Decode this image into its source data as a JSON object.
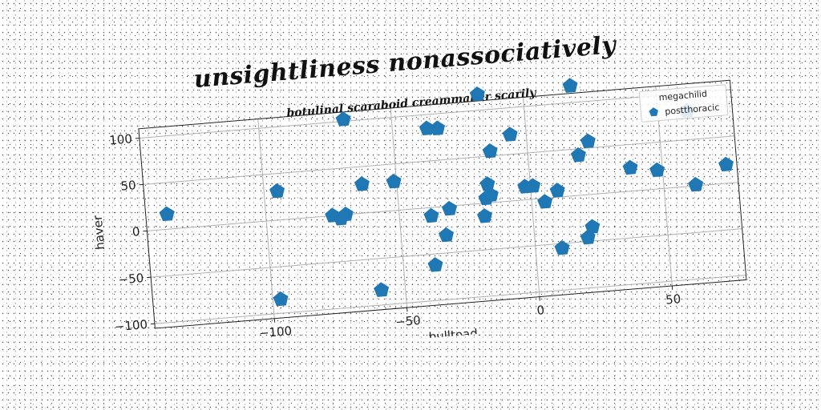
{
  "chart_data": {
    "type": "scatter",
    "title": "unsightliness nonassociatively",
    "subtitle": "botulinal scaraboid creammaker scarily",
    "xlabel": "bulltoad",
    "ylabel": "haver",
    "xlim": [
      -145,
      78
    ],
    "ylim": [
      -105,
      110
    ],
    "xticks": [
      -100,
      -50,
      0,
      50
    ],
    "yticks": [
      -100,
      -50,
      0,
      50,
      100
    ],
    "grid": true,
    "legend": {
      "title": "megachilid",
      "placement": "top-right"
    },
    "series": [
      {
        "name": "postthoracic",
        "color": "#1f77b4",
        "marker": "pentagon",
        "points": [
          [
            -137,
            16
          ],
          [
            -95,
            31
          ],
          [
            -68,
            102
          ],
          [
            -63,
            31
          ],
          [
            -51,
            31
          ],
          [
            -75,
            0
          ],
          [
            -72,
            -4
          ],
          [
            -70,
            0
          ],
          [
            -97,
            -85
          ],
          [
            -59,
            -84
          ],
          [
            -37,
            85
          ],
          [
            -33,
            84
          ],
          [
            -38,
            -9
          ],
          [
            -33,
            -31
          ],
          [
            -31,
            -3
          ],
          [
            -38,
            -62
          ],
          [
            -17,
            117
          ],
          [
            -14,
            55
          ],
          [
            -16,
            20
          ],
          [
            -17,
            5
          ],
          [
            -15,
            8
          ],
          [
            -18,
            -14
          ],
          [
            -6,
            71
          ],
          [
            -2,
            14
          ],
          [
            1,
            14
          ],
          [
            5,
            -4
          ],
          [
            10,
            7
          ],
          [
            10,
            -55
          ],
          [
            18,
            118
          ],
          [
            19,
            43
          ],
          [
            20,
            -46
          ],
          [
            22,
            -35
          ],
          [
            23,
            57
          ],
          [
            38,
            25
          ],
          [
            48,
            20
          ],
          [
            61,
            81
          ],
          [
            62,
            1
          ],
          [
            74,
            20
          ]
        ]
      }
    ]
  }
}
